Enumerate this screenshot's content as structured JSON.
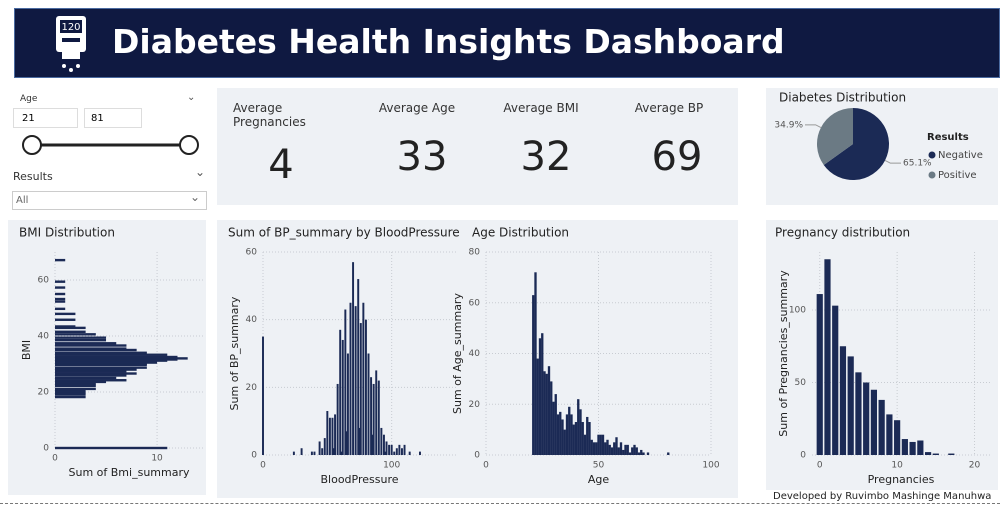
{
  "header": {
    "title": "Diabetes Health Insights Dashboard",
    "icon_text": "120"
  },
  "filters": {
    "age": {
      "label": "Age",
      "min": "21",
      "max": "81"
    },
    "results": {
      "label": "Results",
      "selected": "All"
    }
  },
  "kpis": [
    {
      "label": "Average Pregnancies",
      "value": "4"
    },
    {
      "label": "Average Age",
      "value": "33"
    },
    {
      "label": "Average BMI",
      "value": "32"
    },
    {
      "label": "Average BP",
      "value": "69"
    }
  ],
  "footer": "Developed by Ruvimbo Mashinge Manuhwa",
  "chart_data": [
    {
      "type": "pie",
      "title": "Diabetes Distribution",
      "legend_title": "Results",
      "categories": [
        "Negative",
        "Positive"
      ],
      "values": [
        65.1,
        34.9
      ],
      "value_labels": [
        "65.1%",
        "34.9%"
      ],
      "colors": [
        "#1b2a55",
        "#6b7a84"
      ]
    },
    {
      "type": "barh",
      "title": "BMI Distribution",
      "xlabel": "Sum of Bmi_summary",
      "ylabel": "BMI",
      "color": "#1b2a55",
      "y": [
        0,
        18.2,
        19.1,
        19.6,
        20.4,
        21.1,
        22.2,
        22.9,
        23.6,
        24.2,
        25.0,
        25.9,
        26.6,
        27.4,
        28.0,
        28.7,
        29.7,
        30.1,
        30.5,
        31.2,
        31.6,
        32.0,
        32.5,
        33.3,
        34.0,
        35.0,
        35.5,
        36.6,
        37.4,
        38.5,
        39.4,
        40.6,
        41.5,
        42.9,
        43.4,
        45.8,
        47.9,
        49.7,
        52.3,
        53.2,
        55.0,
        57.3,
        59.4,
        67.1
      ],
      "values": [
        11,
        3,
        3,
        3,
        3,
        4,
        4,
        4,
        5,
        7,
        6,
        7,
        8,
        7,
        8,
        9,
        9,
        9,
        10,
        11,
        12,
        13,
        12,
        11,
        9,
        8,
        7,
        7,
        6,
        5,
        5,
        4,
        3,
        3,
        2,
        2,
        2,
        1,
        1,
        1,
        1,
        1,
        1,
        1
      ],
      "xlim": [
        0,
        14.5
      ],
      "xticks": [
        0,
        10
      ],
      "ylim": [
        0,
        70
      ],
      "yticks": [
        0,
        20,
        40,
        60
      ],
      "grid": true
    },
    {
      "type": "bar",
      "title": "Sum of BP_summary by BloodPressure",
      "xlabel": "BloodPressure",
      "ylabel": "Sum of BP_summary",
      "color": "#1b2a55",
      "x": [
        0,
        24,
        30,
        38,
        40,
        44,
        46,
        48,
        50,
        52,
        54,
        55,
        56,
        58,
        60,
        61,
        62,
        64,
        65,
        66,
        68,
        70,
        72,
        74,
        75,
        76,
        78,
        80,
        82,
        84,
        85,
        86,
        88,
        90,
        92,
        94,
        95,
        96,
        98,
        100,
        102,
        104,
        106,
        108,
        110,
        114,
        122
      ],
      "values": [
        35,
        1,
        2,
        1,
        1,
        4,
        2,
        5,
        13,
        11,
        11,
        2,
        12,
        21,
        37,
        1,
        34,
        43,
        7,
        30,
        45,
        57,
        44,
        52,
        8,
        39,
        45,
        40,
        30,
        23,
        6,
        21,
        25,
        22,
        8,
        6,
        1,
        4,
        3,
        3,
        1,
        2,
        3,
        2,
        3,
        1,
        1
      ],
      "xlim": [
        0,
        150
      ],
      "xticks": [
        0,
        100
      ],
      "ylim": [
        0,
        60
      ],
      "yticks": [
        0,
        20,
        40,
        60
      ],
      "grid": true
    },
    {
      "type": "bar",
      "title": "Age Distribution",
      "xlabel": "Age",
      "ylabel": "Sum of Age_summary",
      "color": "#1b2a55",
      "x": [
        21,
        22,
        23,
        24,
        25,
        26,
        27,
        28,
        29,
        30,
        31,
        32,
        33,
        34,
        35,
        36,
        37,
        38,
        39,
        40,
        41,
        42,
        43,
        44,
        45,
        46,
        47,
        48,
        49,
        50,
        51,
        52,
        53,
        54,
        55,
        56,
        57,
        58,
        59,
        60,
        61,
        62,
        63,
        64,
        65,
        66,
        67,
        68,
        69,
        70,
        72,
        81
      ],
      "values": [
        63,
        72,
        38,
        46,
        48,
        33,
        32,
        35,
        29,
        21,
        24,
        16,
        17,
        14,
        10,
        16,
        19,
        16,
        12,
        13,
        22,
        18,
        13,
        8,
        15,
        13,
        6,
        5,
        5,
        8,
        8,
        8,
        5,
        6,
        4,
        3,
        5,
        7,
        3,
        5,
        2,
        4,
        4,
        1,
        3,
        4,
        3,
        1,
        2,
        1,
        1,
        1
      ],
      "xlim": [
        0,
        100
      ],
      "xticks": [
        0,
        50,
        100
      ],
      "ylim": [
        0,
        80
      ],
      "yticks": [
        0,
        20,
        40,
        60,
        80
      ],
      "grid": true
    },
    {
      "type": "bar",
      "title": "Pregnancy distribution",
      "xlabel": "Pregnancies",
      "ylabel": "Sum of Pregnancies_summary",
      "color": "#1b2a55",
      "x": [
        0,
        1,
        2,
        3,
        4,
        5,
        6,
        7,
        8,
        9,
        10,
        11,
        12,
        13,
        14,
        15,
        17
      ],
      "values": [
        111,
        135,
        103,
        75,
        68,
        57,
        50,
        45,
        38,
        28,
        24,
        11,
        9,
        10,
        2,
        1,
        1
      ],
      "xlim": [
        -1,
        22
      ],
      "xticks": [
        0,
        10,
        20
      ],
      "ylim": [
        0,
        140
      ],
      "yticks": [
        0,
        50,
        100
      ],
      "grid": true
    }
  ]
}
